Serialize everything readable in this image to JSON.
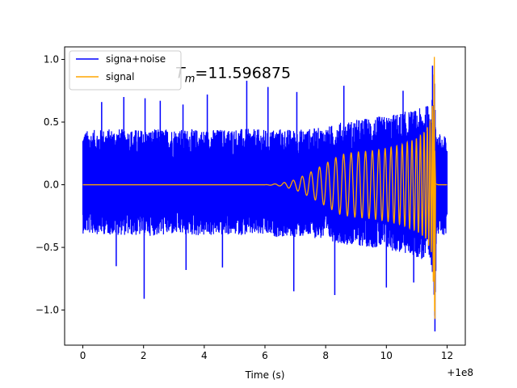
{
  "chart_data": {
    "type": "line",
    "title": "",
    "xlabel": "Time (s)",
    "ylabel": "",
    "xlim": [
      -0.6,
      12.6
    ],
    "ylim": [
      -1.28,
      1.1
    ],
    "x_offset_label": "+1e8",
    "x_ticks": [
      0,
      2,
      4,
      6,
      8,
      10,
      12
    ],
    "x_tick_labels": [
      "0",
      "2",
      "4",
      "6",
      "8",
      "10",
      "12"
    ],
    "y_ticks": [
      -1.0,
      -0.5,
      0.0,
      0.5,
      1.0
    ],
    "y_tick_labels": [
      "−1.0",
      "−0.5",
      "0.0",
      "0.5",
      "1.0"
    ],
    "annotation": {
      "prefix": "T",
      "subscript": "m",
      "value_text": "=11.596875",
      "x": 3.05,
      "y": 0.93
    },
    "legend": {
      "placement": "upper-left",
      "entries": [
        "signa+noise",
        "signal"
      ]
    },
    "colors": {
      "noisy": "#0000ff",
      "signal": "#ffa500"
    },
    "series": [
      {
        "name": "signa+noise",
        "kind": "noisy",
        "t_range": [
          0,
          12
        ],
        "envelope": {
          "t": [
            0,
            1,
            2,
            3,
            4,
            5,
            6,
            6.5,
            7,
            7.5,
            8,
            8.5,
            9,
            9.5,
            10,
            10.5,
            11,
            11.3,
            11.55,
            11.6,
            11.65,
            12
          ],
          "upper": [
            0.43,
            0.45,
            0.44,
            0.45,
            0.44,
            0.45,
            0.44,
            0.45,
            0.44,
            0.45,
            0.46,
            0.5,
            0.52,
            0.54,
            0.55,
            0.58,
            0.6,
            0.63,
            0.7,
            0.9,
            0.42,
            0.38
          ],
          "lower": [
            -0.39,
            -0.4,
            -0.41,
            -0.4,
            -0.41,
            -0.4,
            -0.41,
            -0.42,
            -0.42,
            -0.42,
            -0.44,
            -0.47,
            -0.49,
            -0.5,
            -0.52,
            -0.55,
            -0.58,
            -0.62,
            -0.72,
            -1.17,
            -0.42,
            -0.4
          ]
        },
        "spikes": [
          {
            "t": 0.62,
            "v": 0.66
          },
          {
            "t": 1.35,
            "v": 0.7
          },
          {
            "t": 2.05,
            "v": 0.69
          },
          {
            "t": 2.55,
            "v": 0.67
          },
          {
            "t": 3.3,
            "v": 0.64
          },
          {
            "t": 4.1,
            "v": 0.72
          },
          {
            "t": 5.4,
            "v": 0.83
          },
          {
            "t": 6.1,
            "v": 0.78
          },
          {
            "t": 7.05,
            "v": 0.74
          },
          {
            "t": 8.6,
            "v": 0.79
          },
          {
            "t": 10.55,
            "v": 0.75
          },
          {
            "t": 2.02,
            "v": -0.91
          },
          {
            "t": 3.4,
            "v": -0.68
          },
          {
            "t": 6.95,
            "v": -0.85
          },
          {
            "t": 8.3,
            "v": -0.88
          },
          {
            "t": 10.0,
            "v": -0.82
          },
          {
            "t": 10.9,
            "v": -0.78
          },
          {
            "t": 1.1,
            "v": -0.65
          },
          {
            "t": 4.6,
            "v": -0.66
          },
          {
            "t": 11.6,
            "v": -1.17
          },
          {
            "t": 11.52,
            "v": 0.95
          }
        ]
      },
      {
        "name": "signal",
        "kind": "chirp",
        "t_range": [
          0,
          12
        ],
        "t_merger": 11.596875,
        "envelope": {
          "t": [
            0,
            6.0,
            6.5,
            7.0,
            7.5,
            8.0,
            8.5,
            9.0,
            9.5,
            10.0,
            10.5,
            11.0,
            11.3,
            11.5,
            11.59,
            11.62,
            11.7,
            12
          ],
          "amp": [
            0.0,
            0.0,
            0.01,
            0.04,
            0.1,
            0.17,
            0.24,
            0.26,
            0.27,
            0.29,
            0.32,
            0.37,
            0.43,
            0.55,
            1.02,
            0.02,
            0.0,
            0.0
          ]
        },
        "peak_min": -1.07
      }
    ]
  }
}
